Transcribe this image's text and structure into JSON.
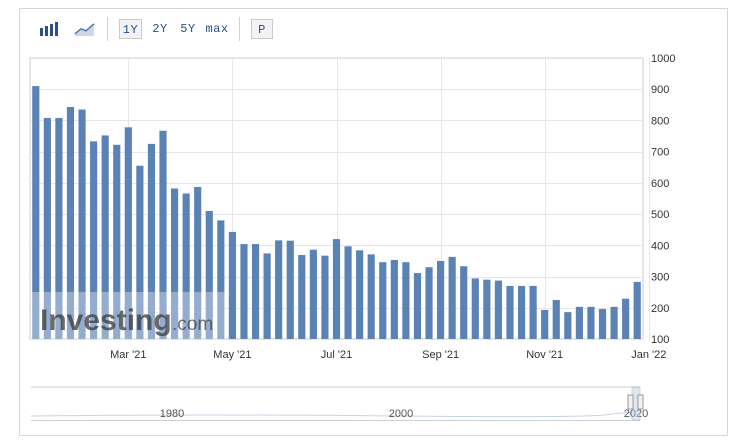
{
  "toolbar": {
    "bar_icon": "bar-chart-icon",
    "line_icon": "line-chart-icon",
    "ranges": [
      "1Y",
      "2Y",
      "5Y",
      "max"
    ],
    "selected_range": "1Y",
    "p_label": "P"
  },
  "colors": {
    "bar": "#5b82b5",
    "grid": "#e6e6e6",
    "axis": "#cccccc",
    "watermark": "#ffffff"
  },
  "watermark": {
    "brand": "Investing",
    "suffix": ".com"
  },
  "navigator": {
    "labels": [
      "1980",
      "2000",
      "2020"
    ]
  },
  "chart_data": {
    "type": "bar",
    "ylim": [
      100,
      1000
    ],
    "yticks": [
      100,
      200,
      300,
      400,
      500,
      600,
      700,
      800,
      900,
      1000
    ],
    "xtick_labels": [
      "Mar '21",
      "May '21",
      "Jul '21",
      "Sep '21",
      "Nov '21",
      "Jan '22"
    ],
    "xtick_indices": [
      8,
      17,
      26,
      35,
      44,
      53
    ],
    "values": [
      910,
      808,
      808,
      843,
      835,
      733,
      752,
      722,
      778,
      655,
      725,
      767,
      582,
      566,
      587,
      510,
      480,
      443,
      404,
      404,
      374,
      416,
      415,
      369,
      386,
      367,
      420,
      397,
      384,
      371,
      346,
      353,
      346,
      311,
      330,
      350,
      363,
      333,
      294,
      290,
      287,
      270,
      270,
      270,
      193,
      225,
      186,
      203,
      203,
      196,
      203,
      229,
      283
    ]
  }
}
